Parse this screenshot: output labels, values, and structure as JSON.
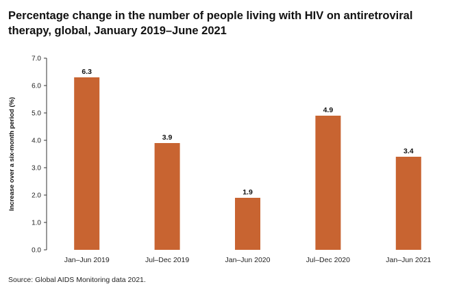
{
  "title": "Percentage change in the number of people living with HIV on antiretroviral therapy, global, January 2019–June 2021",
  "source": "Source: Global AIDS Monitoring data 2021.",
  "colors": {
    "bar": "#c86431",
    "axis": "#333333"
  },
  "chart_data": {
    "type": "bar",
    "title": "Percentage change in the number of people living with HIV on antiretroviral therapy, global, January 2019–June 2021",
    "xlabel": "",
    "ylabel": "Increase over a six-month period (%)",
    "categories": [
      "Jan–Jun 2019",
      "Jul–Dec 2019",
      "Jan–Jun 2020",
      "Jul–Dec 2020",
      "Jan–Jun 2021"
    ],
    "values": [
      6.3,
      3.9,
      1.9,
      4.9,
      3.4
    ],
    "data_labels": [
      "6.3",
      "3.9",
      "1.9",
      "4.9",
      "3.4"
    ],
    "yticks": [
      "0.0",
      "1.0",
      "2.0",
      "3.0",
      "4.0",
      "5.0",
      "6.0",
      "7.0"
    ],
    "ylim": [
      0,
      7
    ],
    "grid": false,
    "legend": "none"
  }
}
